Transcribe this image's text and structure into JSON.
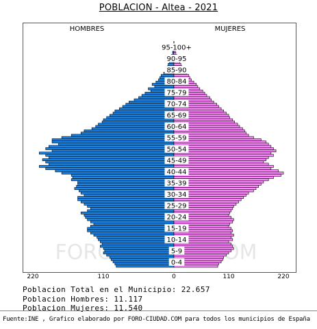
{
  "chart_data": {
    "type": "bar",
    "title": "POBLACION - Altea - 2021",
    "left_label": "HOMBRES",
    "right_label": "MUJERES",
    "watermark": "FORO-CIUDAD.COM",
    "age_labels": [
      "95-100+",
      "90-95",
      "85-90",
      "80-84",
      "75-79",
      "70-74",
      "65-69",
      "60-64",
      "55-59",
      "50-54",
      "45-49",
      "40-44",
      "35-39",
      "30-34",
      "25-29",
      "20-24",
      "15-19",
      "10-14",
      "5-9",
      "0-4"
    ],
    "x_ticks": [
      "220",
      "110",
      "0",
      "110",
      "220"
    ],
    "xlim": [
      0,
      220
    ],
    "colors": {
      "men": "#1a86e8",
      "women": "#ff88ff",
      "edge": "#000000"
    },
    "ages": [
      101,
      100,
      99,
      98,
      97,
      96,
      95,
      94,
      93,
      92,
      91,
      90,
      89,
      88,
      87,
      86,
      85,
      84,
      83,
      82,
      81,
      80,
      79,
      78,
      77,
      76,
      75,
      74,
      73,
      72,
      71,
      70,
      69,
      68,
      67,
      66,
      65,
      64,
      63,
      62,
      61,
      60,
      59,
      58,
      57,
      56,
      55,
      54,
      53,
      52,
      51,
      50,
      49,
      48,
      47,
      46,
      45,
      44,
      43,
      42,
      41,
      40,
      39,
      38,
      37,
      36,
      35,
      34,
      33,
      32,
      31,
      30,
      29,
      28,
      27,
      26,
      25,
      24,
      23,
      22,
      21,
      20,
      19,
      18,
      17,
      16,
      15,
      14,
      13,
      12,
      11,
      10,
      9,
      8,
      7,
      6,
      5,
      4,
      3,
      2,
      1,
      0
    ],
    "men": [
      0,
      0,
      0,
      1,
      2,
      2,
      4,
      5,
      6,
      7,
      9,
      10,
      12,
      14,
      16,
      20,
      22,
      24,
      28,
      34,
      30,
      40,
      36,
      45,
      50,
      55,
      62,
      70,
      75,
      80,
      85,
      92,
      95,
      100,
      105,
      110,
      112,
      118,
      122,
      128,
      140,
      145,
      160,
      175,
      190,
      190,
      180,
      195,
      200,
      190,
      210,
      200,
      195,
      205,
      200,
      195,
      210,
      200,
      185,
      175,
      160,
      158,
      160,
      150,
      150,
      152,
      155,
      148,
      145,
      140,
      150,
      150,
      145,
      140,
      135,
      130,
      135,
      145,
      140,
      138,
      135,
      130,
      125,
      130,
      135,
      135,
      130,
      125,
      120,
      118,
      115,
      112,
      115,
      110,
      108,
      110,
      105,
      100,
      98,
      95,
      92,
      90
    ],
    "women": [
      0,
      0,
      1,
      2,
      3,
      4,
      6,
      8,
      10,
      12,
      14,
      16,
      20,
      22,
      26,
      30,
      32,
      35,
      40,
      45,
      48,
      52,
      58,
      62,
      66,
      72,
      75,
      80,
      86,
      90,
      95,
      100,
      105,
      110,
      112,
      118,
      122,
      128,
      132,
      138,
      142,
      145,
      150,
      160,
      175,
      185,
      190,
      195,
      200,
      205,
      195,
      200,
      190,
      185,
      180,
      190,
      200,
      195,
      210,
      220,
      215,
      200,
      190,
      180,
      175,
      170,
      165,
      160,
      150,
      145,
      140,
      135,
      130,
      125,
      120,
      118,
      115,
      112,
      110,
      115,
      120,
      118,
      112,
      110,
      115,
      118,
      115,
      120,
      115,
      118,
      110,
      115,
      118,
      120,
      115,
      110,
      105,
      100,
      98,
      95,
      90,
      88
    ]
  },
  "stats": {
    "total": "Poblacion Total en el Municipio: 22.657",
    "men": "Poblacion Hombres: 11.117",
    "women": "Poblacion Mujeres: 11.540"
  },
  "source": "Fuente:INE , Grafico elaborado por FORO-CIUDAD.COM para todos los municipios de España"
}
